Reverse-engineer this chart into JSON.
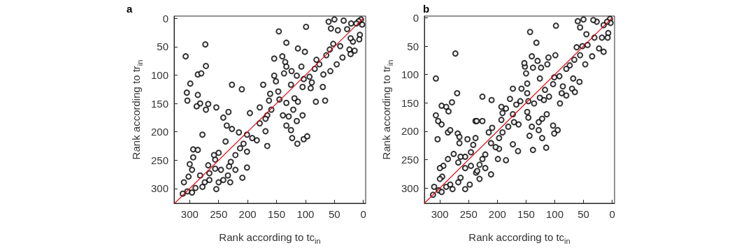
{
  "chart_data": [
    {
      "type": "scatter",
      "title": "a",
      "xlabel": "Rank according to tc$_{in}$",
      "ylabel": "Rank according to tr$_{in}$",
      "xlim": [
        327,
        -4
      ],
      "ylim": [
        326,
        -4
      ],
      "xticks": [
        300,
        250,
        200,
        150,
        100,
        50,
        0
      ],
      "yticks": [
        0,
        50,
        100,
        150,
        200,
        250,
        300
      ],
      "marker": "circle",
      "grid": false,
      "series": [
        {
          "color": "#000000",
          "x": [
            4,
            2,
            8,
            12,
            21,
            28,
            34,
            50,
            60,
            56,
            44,
            6,
            7,
            18,
            22,
            24,
            22,
            15,
            36,
            46,
            40,
            52,
            58,
            64,
            57,
            81,
            76,
            84,
            69,
            70,
            66,
            82,
            93,
            91,
            89,
            103,
            105,
            101,
            99,
            107,
            115,
            124,
            125,
            119,
            113,
            121,
            133,
            139,
            129,
            133,
            125,
            123,
            114,
            103,
            97,
            115,
            105,
            113,
            133,
            146,
            140,
            135,
            133,
            137,
            154,
            154,
            151,
            147,
            145,
            161,
            163,
            159,
            166,
            179,
            173,
            169,
            179,
            169,
            166,
            184,
            192,
            196,
            201,
            207,
            201,
            201,
            209,
            221,
            229,
            215,
            227,
            233,
            242,
            236,
            238,
            227,
            210,
            254,
            278,
            272,
            268,
            282,
            286,
            288,
            304,
            305,
            307,
            286,
            299,
            280,
            273,
            272,
            294,
            286,
            294,
            300,
            296,
            302,
            310,
            312,
            304,
            296,
            290,
            278,
            274,
            282,
            266,
            268,
            256,
            258,
            250,
            246,
            250,
            254,
            242,
            234,
            232,
            230,
            221,
            213,
            256,
            266
          ],
          "values": [
            2,
            11,
            5,
            9,
            9,
            19,
            4,
            2,
            6,
            18,
            21,
            29,
            37,
            41,
            35,
            55,
            63,
            57,
            69,
            81,
            49,
            45,
            55,
            65,
            93,
            73,
            81,
            89,
            99,
            121,
            145,
            147,
            103,
            123,
            113,
            107,
            121,
            59,
            15,
            85,
            101,
            93,
            117,
            141,
            147,
            161,
            149,
            171,
            173,
            189,
            197,
            211,
            221,
            213,
            208,
            181,
            171,
            53,
            43,
            23,
            67,
            77,
            85,
            97,
            71,
            101,
            111,
            129,
            143,
            133,
            145,
            161,
            171,
            157,
            117,
            177,
            185,
            199,
            225,
            215,
            211,
            167,
            205,
            221,
            235,
            263,
            281,
            241,
            253,
            201,
            195,
            165,
            175,
            189,
            217,
            117,
            125,
            157,
            205,
            161,
            151,
            150,
            135,
            155,
            145,
            131,
            67,
            99,
            115,
            97,
            46,
            84,
            231,
            232,
            245,
            257,
            267,
            279,
            289,
            309,
            305,
            307,
            299,
            297,
            289,
            277,
            273,
            259,
            249,
            241,
            237,
            267,
            289,
            301,
            285,
            277,
            261,
            289,
            267,
            229,
            265,
            285
          ]
        },
        {
          "type": "line",
          "color": "#e8000b",
          "marker": "none",
          "x": [
            326,
            0
          ],
          "values": [
            326,
            0
          ]
        }
      ]
    },
    {
      "type": "scatter",
      "title": "b",
      "xlabel": "Rank according to tc$_{in}$",
      "ylabel": "Rank according to tr$_{in}$",
      "xlim": [
        327,
        -4
      ],
      "ylim": [
        327,
        -3
      ],
      "xticks": [
        300,
        250,
        200,
        150,
        100,
        50,
        0
      ],
      "yticks": [
        0,
        50,
        100,
        150,
        200,
        250,
        300
      ],
      "marker": "circle",
      "grid": false,
      "series": [
        {
          "color": "#000000",
          "x": [
            4,
            3,
            9,
            15,
            27,
            33,
            50,
            60,
            56,
            45,
            31,
            18,
            7,
            8,
            23,
            15,
            35,
            47,
            43,
            52,
            62,
            56,
            66,
            74,
            80,
            68,
            70,
            65,
            57,
            80,
            88,
            86,
            92,
            91,
            101,
            103,
            99,
            98,
            113,
            111,
            124,
            126,
            117,
            110,
            119,
            114,
            122,
            128,
            128,
            122,
            115,
            103,
            95,
            101,
            143,
            132,
            140,
            130,
            138,
            152,
            153,
            150,
            148,
            158,
            148,
            146,
            136,
            126,
            148,
            146,
            140,
            144,
            138,
            163,
            171,
            173,
            164,
            173,
            178,
            173,
            160,
            167,
            185,
            193,
            191,
            193,
            181,
            191,
            197,
            197,
            185,
            199,
            203,
            211,
            215,
            209,
            226,
            226,
            210,
            238,
            238,
            242,
            252,
            256,
            246,
            264,
            268,
            266,
            269,
            276,
            286,
            294,
            300,
            296,
            300,
            310,
            312,
            302,
            297,
            289,
            282,
            278,
            268,
            264,
            256,
            248,
            256,
            246,
            237,
            231,
            235,
            231,
            221,
            221,
            211,
            226,
            297,
            303,
            307,
            297,
            289,
            285,
            279,
            270,
            273,
            307,
            304,
            286,
            282,
            266,
            236
          ],
          "values": [
            2,
            9,
            7,
            13,
            7,
            4,
            3,
            6,
            17,
            29,
            35,
            35,
            27,
            35,
            54,
            60,
            68,
            82,
            48,
            50,
            52,
            66,
            74,
            84,
            90,
            107,
            125,
            131,
            113,
            137,
            133,
            121,
            103,
            151,
            105,
            117,
            66,
            14,
            82,
            70,
            88,
            107,
            127,
            139,
            145,
            170,
            178,
            184,
            198,
            212,
            229,
            190,
            198,
            204,
            25,
            44,
            68,
            76,
            88,
            86,
            80,
            98,
            116,
            125,
            133,
            147,
            151,
            141,
            166,
            176,
            192,
            208,
            233,
            188,
            184,
            223,
            235,
            170,
            143,
            125,
            147,
            153,
            160,
            157,
            168,
            180,
            192,
            202,
            212,
            231,
            251,
            249,
            228,
            221,
            202,
            194,
            139,
            182,
            145,
            182,
            212,
            224,
            214,
            245,
            237,
            245,
            255,
            221,
            204,
            240,
            249,
            261,
            265,
            280,
            284,
            298,
            312,
            304,
            307,
            298,
            294,
            302,
            290,
            282,
            302,
            294,
            265,
            261,
            273,
            284,
            270,
            259,
            265,
            241,
            276,
            249,
            188,
            182,
            172,
            155,
            157,
            165,
            149,
            133,
            63,
            107,
            214,
            202,
            198,
            210,
            182
          ]
        },
        {
          "type": "line",
          "color": "#e8000b",
          "marker": "none",
          "x": [
            327,
            0
          ],
          "values": [
            327,
            0
          ]
        }
      ]
    }
  ]
}
